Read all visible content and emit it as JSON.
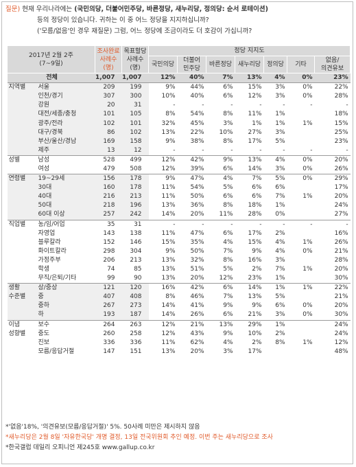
{
  "question": {
    "label": "질문)",
    "line1_pre": "현재 우리나라에는 ",
    "line1_parties": "(국민의당, 더불어민주당, 바른정당, 새누리당, 정의당: 순서 로테이션)",
    "line2": "등의 정당이 있습니다. 귀하는 이 중 어느 정당을 지지하십니까?",
    "line3": "('모름/없음'인 경우 재질문) 그럼, 어느 정당에 조금이라도 더 호감이 가십니까?"
  },
  "header": {
    "period": "2017년 2월 2주",
    "period_sub": "(7~9일)",
    "sample": [
      "조사완료",
      "사례수",
      "(명)"
    ],
    "target": [
      "목표할당",
      "사례수",
      "(명)"
    ],
    "support": "정당 지지도",
    "parties": [
      "국민의당",
      "더불어민주당",
      "바른정당",
      "새누리당",
      "정의당",
      "기타",
      "없음/의견유보"
    ]
  },
  "rows": [
    {
      "g": "",
      "s": "전체",
      "n": "1,007",
      "t": "1,007",
      "v": [
        "12%",
        "40%",
        "7%",
        "13%",
        "4%",
        "0%",
        "23%"
      ],
      "total": true
    },
    {
      "g": "지역별",
      "s": "서울",
      "n": "209",
      "t": "199",
      "v": [
        "9%",
        "44%",
        "6%",
        "15%",
        "3%",
        "0%",
        "22%"
      ],
      "sep": true
    },
    {
      "g": "",
      "s": "인천/경기",
      "n": "307",
      "t": "300",
      "v": [
        "10%",
        "40%",
        "6%",
        "12%",
        "3%",
        "0%",
        "28%"
      ]
    },
    {
      "g": "",
      "s": "강원",
      "n": "20",
      "t": "31",
      "v": [
        "-",
        "-",
        "-",
        "-",
        "-",
        "-",
        "-"
      ]
    },
    {
      "g": "",
      "s": "대전/세종/충청",
      "n": "101",
      "t": "105",
      "v": [
        "8%",
        "54%",
        "8%",
        "11%",
        "1%",
        "",
        "18%"
      ]
    },
    {
      "g": "",
      "s": "광주/전라",
      "n": "102",
      "t": "101",
      "v": [
        "32%",
        "45%",
        "3%",
        "1%",
        "1%",
        "1%",
        "15%"
      ]
    },
    {
      "g": "",
      "s": "대구/경북",
      "n": "86",
      "t": "102",
      "v": [
        "13%",
        "22%",
        "10%",
        "27%",
        "3%",
        "",
        "25%"
      ]
    },
    {
      "g": "",
      "s": "부산/울산/경남",
      "n": "169",
      "t": "158",
      "v": [
        "9%",
        "38%",
        "8%",
        "17%",
        "5%",
        "",
        "23%"
      ]
    },
    {
      "g": "",
      "s": "제주",
      "n": "13",
      "t": "12",
      "v": [
        "-",
        "-",
        "-",
        "-",
        "-",
        "-",
        "-"
      ]
    },
    {
      "g": "성별",
      "s": "남성",
      "n": "528",
      "t": "499",
      "v": [
        "12%",
        "42%",
        "9%",
        "13%",
        "4%",
        "0%",
        "20%"
      ],
      "sep": true
    },
    {
      "g": "",
      "s": "여성",
      "n": "479",
      "t": "508",
      "v": [
        "12%",
        "39%",
        "6%",
        "14%",
        "3%",
        "0%",
        "26%"
      ]
    },
    {
      "g": "연령별",
      "s": "19~29세",
      "n": "156",
      "t": "178",
      "v": [
        "9%",
        "47%",
        "4%",
        "7%",
        "5%",
        "0%",
        "29%"
      ],
      "sep": true
    },
    {
      "g": "",
      "s": "30대",
      "n": "160",
      "t": "178",
      "v": [
        "11%",
        "54%",
        "5%",
        "6%",
        "6%",
        "",
        "17%"
      ]
    },
    {
      "g": "",
      "s": "40대",
      "n": "216",
      "t": "213",
      "v": [
        "11%",
        "50%",
        "6%",
        "6%",
        "7%",
        "1%",
        "20%"
      ]
    },
    {
      "g": "",
      "s": "50대",
      "n": "218",
      "t": "196",
      "v": [
        "13%",
        "36%",
        "8%",
        "18%",
        "1%",
        "",
        "24%"
      ]
    },
    {
      "g": "",
      "s": "60대 이상",
      "n": "257",
      "t": "242",
      "v": [
        "14%",
        "20%",
        "11%",
        "28%",
        "0%",
        "",
        "27%"
      ]
    },
    {
      "g": "직업별",
      "s": "농/임/어업",
      "n": "35",
      "t": "31",
      "v": [
        "-",
        "-",
        "-",
        "-",
        "-",
        "-",
        "-"
      ],
      "sep": true
    },
    {
      "g": "",
      "s": "자영업",
      "n": "143",
      "t": "138",
      "v": [
        "11%",
        "47%",
        "6%",
        "17%",
        "2%",
        "",
        "16%"
      ]
    },
    {
      "g": "",
      "s": "블루칼라",
      "n": "152",
      "t": "146",
      "v": [
        "15%",
        "35%",
        "4%",
        "15%",
        "4%",
        "1%",
        "26%"
      ]
    },
    {
      "g": "",
      "s": "화이트칼라",
      "n": "298",
      "t": "304",
      "v": [
        "9%",
        "50%",
        "7%",
        "9%",
        "4%",
        "0%",
        "21%"
      ]
    },
    {
      "g": "",
      "s": "가정주부",
      "n": "206",
      "t": "213",
      "v": [
        "13%",
        "32%",
        "8%",
        "16%",
        "3%",
        "",
        "28%"
      ]
    },
    {
      "g": "",
      "s": "학생",
      "n": "74",
      "t": "85",
      "v": [
        "13%",
        "51%",
        "5%",
        "2%",
        "7%",
        "1%",
        "20%"
      ]
    },
    {
      "g": "",
      "s": "무직/은퇴/기타",
      "n": "99",
      "t": "90",
      "v": [
        "13%",
        "20%",
        "12%",
        "23%",
        "1%",
        "",
        "30%"
      ]
    },
    {
      "g": "생활",
      "s": "상/중상",
      "n": "121",
      "t": "120",
      "v": [
        "16%",
        "42%",
        "6%",
        "14%",
        "1%",
        "1%",
        "22%"
      ],
      "sep": true
    },
    {
      "g": "수준별",
      "s": "중",
      "n": "407",
      "t": "408",
      "v": [
        "8%",
        "46%",
        "7%",
        "13%",
        "5%",
        "",
        "21%"
      ]
    },
    {
      "g": "",
      "s": "중하",
      "n": "267",
      "t": "273",
      "v": [
        "14%",
        "41%",
        "9%",
        "9%",
        "6%",
        "0%",
        "20%"
      ]
    },
    {
      "g": "",
      "s": "하",
      "n": "193",
      "t": "187",
      "v": [
        "14%",
        "26%",
        "6%",
        "21%",
        "3%",
        "0%",
        "30%"
      ]
    },
    {
      "g": "이념",
      "s": "보수",
      "n": "264",
      "t": "263",
      "v": [
        "12%",
        "21%",
        "13%",
        "29%",
        "1%",
        "",
        "24%"
      ],
      "sep": true
    },
    {
      "g": "성향별",
      "s": "중도",
      "n": "260",
      "t": "258",
      "v": [
        "12%",
        "43%",
        "9%",
        "10%",
        "2%",
        "",
        "24%"
      ]
    },
    {
      "g": "",
      "s": "진보",
      "n": "336",
      "t": "336",
      "v": [
        "11%",
        "62%",
        "4%",
        "2%",
        "8%",
        "1%",
        "12%"
      ]
    },
    {
      "g": "",
      "s": "모름/응답거절",
      "n": "147",
      "t": "151",
      "v": [
        "13%",
        "20%",
        "3%",
        "17%",
        "",
        "",
        "48%"
      ]
    }
  ],
  "notes": [
    "*'없음'18%, '의견유보(모름/응답거절)' 5%. 50사례 미만은 제시하지 않음",
    "*새누리당은 2월 8일 '자유한국당' 개명 결정, 13일 전국위원회 추인 예정. 이번 주는 새누리당으로 조사",
    "*한국갤럽 데일리 오피니언 제245호 www.gallup.co.kr"
  ]
}
